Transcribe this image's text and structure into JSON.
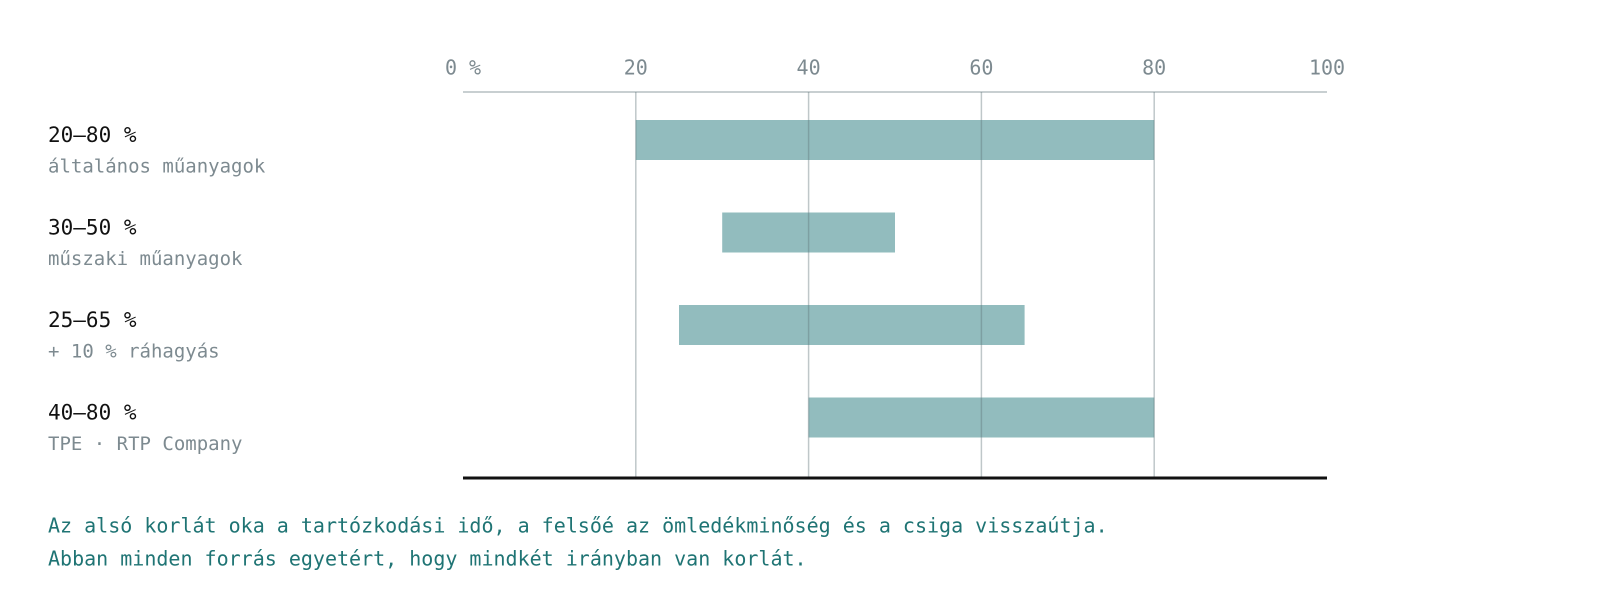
{
  "chart_data": {
    "type": "range_bar",
    "categories": [
      "20–80 %",
      "30–50 %",
      "25–65 %",
      "40–80 %"
    ],
    "sublabels": [
      "általános műanyagok",
      "műszaki műanyagok",
      "+ 10 % ráhagyás",
      "TPE · RTP Company"
    ],
    "starts": [
      20,
      30,
      25,
      40
    ],
    "ends": [
      80,
      50,
      65,
      80
    ],
    "color": "#92bcbe",
    "xlim": [
      0,
      100
    ],
    "xticks": [
      {
        "value": 0,
        "label": "0 %"
      },
      20,
      40,
      60,
      80,
      100
    ],
    "grid": true,
    "notes": [
      "Az alsó korlát oka a tartózkodási idő, a felsőé az ömledékminőség és a csiga visszaútja.",
      "Abban minden forrás egyetért, hogy mindkét irányban van korlát."
    ]
  }
}
